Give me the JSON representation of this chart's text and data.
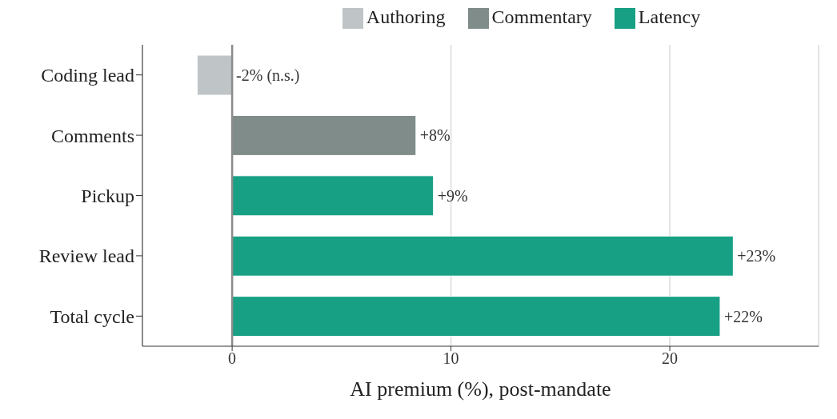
{
  "chart_data": {
    "type": "bar",
    "orientation": "horizontal",
    "stacked": true,
    "categories": [
      "Coding lead",
      "Comments",
      "Pickup",
      "Review lead",
      "Total cycle"
    ],
    "series": [
      {
        "name": "Authoring",
        "color": "#bfc4c6",
        "values": [
          -1.6,
          null,
          null,
          null,
          null
        ],
        "value_labels": [
          "-2% (n.s.)",
          null,
          null,
          null,
          null
        ]
      },
      {
        "name": "Commentary",
        "color": "#7f8c8a",
        "values": [
          null,
          8.4,
          null,
          null,
          null
        ],
        "value_labels": [
          null,
          "+8%",
          null,
          null,
          null
        ]
      },
      {
        "name": "Latency",
        "color": "#18a085",
        "values": [
          null,
          null,
          9.2,
          22.9,
          22.3
        ],
        "value_labels": [
          null,
          null,
          "+9%",
          "+23%",
          "+22%"
        ]
      }
    ],
    "xlabel": "AI premium (%), post-mandate",
    "xlim": [
      -4.1,
      26.8
    ],
    "xticks": [
      0,
      10,
      20
    ],
    "grid": "x",
    "legend": "top",
    "ref_lines": [
      {
        "axis": "x",
        "value": 0,
        "color": "#8c8c8c"
      }
    ]
  }
}
